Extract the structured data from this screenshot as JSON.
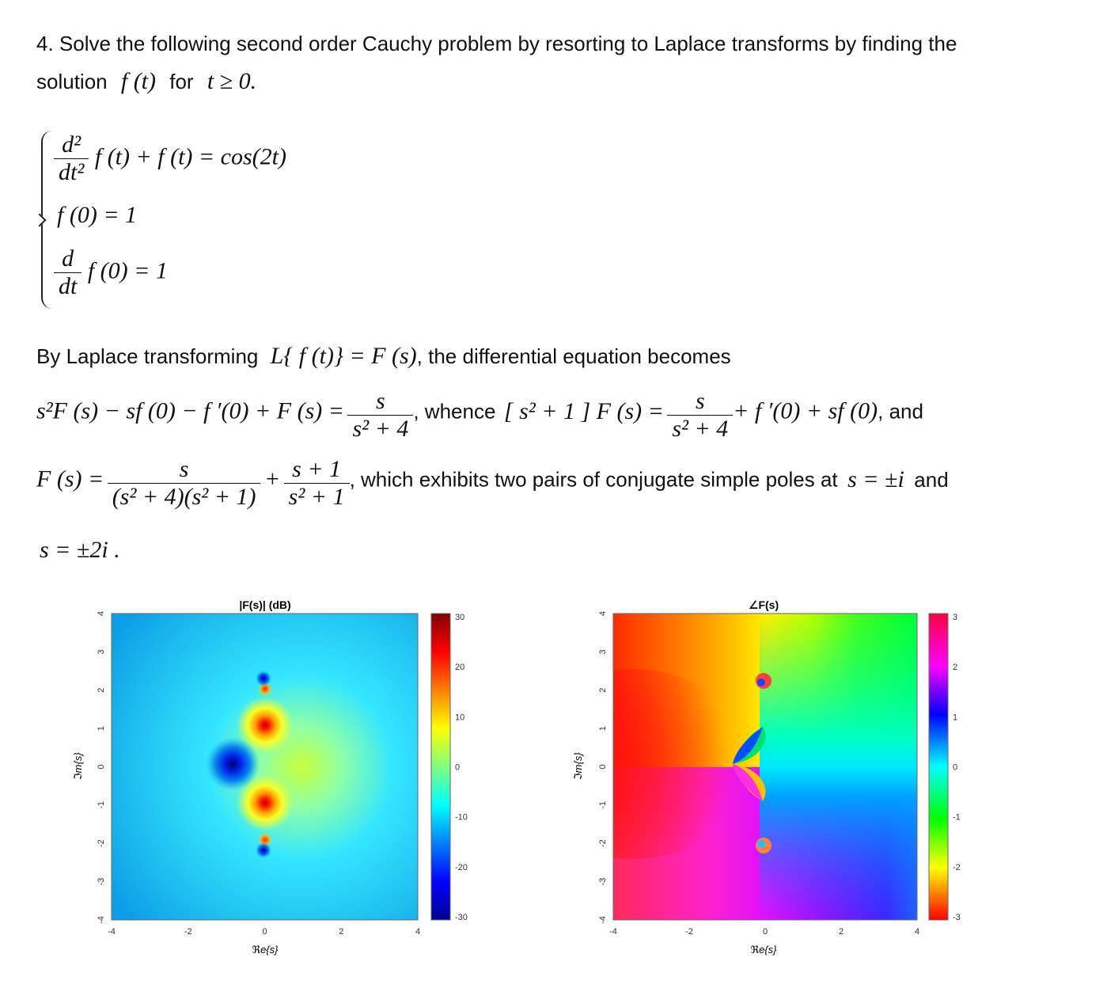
{
  "problem": {
    "line1": "4. Solve the following second order Cauchy problem by resorting to Laplace transforms by finding the",
    "line2_a": "solution",
    "line2_f": "f (t)",
    "line2_b": "for",
    "line2_c": "t ≥ 0."
  },
  "system": {
    "eq1_num": "d²",
    "eq1_den": "dt²",
    "eq1_rest": "f (t) + f (t) = cos(2t)",
    "eq2": "f (0) = 1",
    "eq3_num": "d",
    "eq3_den": "dt",
    "eq3_rest": "f (0) = 1"
  },
  "derivation": {
    "p1_a": "By Laplace transforming",
    "p1_math": "L{ f (t)} = F (s)",
    "p1_b": ", the differential equation becomes",
    "eq_a": "s²F (s) − sf (0) − f ′(0) + F (s) =",
    "eq_a_num": "s",
    "eq_a_den": "s² + 4",
    "whence": ", whence",
    "eq_b": "[ s² + 1 ] F (s) =",
    "eq_b_num": "s",
    "eq_b_den": "s² + 4",
    "eq_b_rest": "+ f ′(0) + sf (0)",
    "and1": ", and",
    "Fs": "F (s) =",
    "Fs_num1": "s",
    "Fs_den1": "(s² + 4)(s² + 1)",
    "plus": "+",
    "Fs_num2": "s + 1",
    "Fs_den2": "s² + 1",
    "which": ", which exhibits two pairs of conjugate simple poles at",
    "poles1": "s = ±i",
    "and2": "and",
    "poles2": "s = ±2i ."
  },
  "figures": {
    "left": {
      "title": "|F(s)| (dB)",
      "xlabel": "ℜe{s}",
      "ylabel": "ℑm{s}",
      "xticks": [
        "-4",
        "-2",
        "0",
        "2",
        "4"
      ],
      "yticks": [
        "4",
        "3",
        "2",
        "1",
        "0",
        "-1",
        "-2",
        "-3",
        "-4"
      ],
      "colorbar_ticks": [
        "30",
        "20",
        "10",
        "0",
        "-10",
        "-20",
        "-30"
      ]
    },
    "right": {
      "title": "∠F(s)",
      "xlabel": "ℜe{s}",
      "ylabel": "ℑm{s}",
      "xticks": [
        "-4",
        "-2",
        "0",
        "2",
        "4"
      ],
      "yticks": [
        "4",
        "3",
        "2",
        "1",
        "0",
        "-1",
        "-2",
        "-3",
        "-4"
      ],
      "colorbar_ticks": [
        "3",
        "2",
        "1",
        "0",
        "-1",
        "-2",
        "-3"
      ]
    }
  },
  "chart_data": [
    {
      "type": "heatmap",
      "title": "|F(s)| (dB)",
      "xlabel": "ℜe{s}",
      "ylabel": "ℑm{s}",
      "xlim": [
        -4,
        4
      ],
      "ylim": [
        -4,
        4
      ],
      "colorbar_range": [
        -30,
        30
      ],
      "colormap": "jet",
      "poles": [
        [
          0,
          1
        ],
        [
          0,
          -1
        ],
        [
          0,
          2
        ],
        [
          0,
          -2
        ]
      ],
      "zeros": [
        [
          -0.85,
          0
        ],
        [
          0,
          2.2
        ],
        [
          0,
          -2.2
        ]
      ]
    },
    {
      "type": "heatmap",
      "title": "∠F(s)",
      "xlabel": "ℜe{s}",
      "ylabel": "ℑm{s}",
      "xlim": [
        -4,
        4
      ],
      "ylim": [
        -4,
        4
      ],
      "colorbar_range": [
        -3.14,
        3.14
      ],
      "colormap": "hsv",
      "poles": [
        [
          0,
          1
        ],
        [
          0,
          -1
        ],
        [
          0,
          2
        ],
        [
          0,
          -2
        ]
      ],
      "zeros": [
        [
          -0.85,
          0
        ],
        [
          0,
          2.2
        ],
        [
          0,
          -2.2
        ]
      ]
    }
  ]
}
